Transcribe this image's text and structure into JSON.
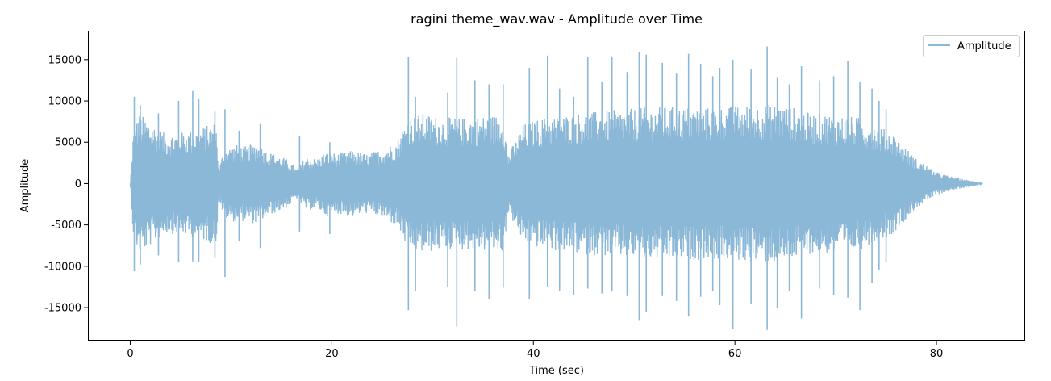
{
  "chart_data": {
    "type": "line",
    "title": "ragini theme_wav.wav - Amplitude over Time",
    "xlabel": "Time (sec)",
    "ylabel": "Amplitude",
    "xlim": [
      -4.2,
      88.8
    ],
    "ylim": [
      -19000,
      18500
    ],
    "xticks": [
      0,
      20,
      40,
      60,
      80
    ],
    "yticks": [
      -15000,
      -10000,
      -5000,
      0,
      5000,
      10000,
      15000
    ],
    "grid": false,
    "legend": {
      "position": "top-right",
      "entries": [
        "Amplitude"
      ]
    },
    "series": [
      {
        "name": "Amplitude",
        "color": "#8cb8d8",
        "duration": 84.6,
        "envelope": [
          [
            0.0,
            0
          ],
          [
            0.3,
            6200
          ],
          [
            0.8,
            8500
          ],
          [
            1.5,
            8000
          ],
          [
            2.5,
            7000
          ],
          [
            3.5,
            6000
          ],
          [
            5.0,
            6200
          ],
          [
            6.5,
            6500
          ],
          [
            7.5,
            7000
          ],
          [
            8.5,
            7500
          ],
          [
            8.8,
            1800
          ],
          [
            9.3,
            4200
          ],
          [
            10.5,
            4700
          ],
          [
            11.5,
            4500
          ],
          [
            12.5,
            5000
          ],
          [
            13.5,
            4000
          ],
          [
            14.5,
            3500
          ],
          [
            15.5,
            3000
          ],
          [
            16.5,
            1800
          ],
          [
            17.5,
            3300
          ],
          [
            18.5,
            3000
          ],
          [
            19.5,
            4000
          ],
          [
            20.5,
            3600
          ],
          [
            22.0,
            4000
          ],
          [
            23.5,
            3600
          ],
          [
            25.0,
            4200
          ],
          [
            26.5,
            5200
          ],
          [
            27.5,
            8000
          ],
          [
            29.0,
            8500
          ],
          [
            31.0,
            8000
          ],
          [
            33.0,
            8000
          ],
          [
            35.0,
            8200
          ],
          [
            37.0,
            8400
          ],
          [
            37.5,
            3500
          ],
          [
            39.0,
            7200
          ],
          [
            41.0,
            8000
          ],
          [
            43.0,
            8300
          ],
          [
            45.0,
            8600
          ],
          [
            47.0,
            8800
          ],
          [
            49.0,
            9000
          ],
          [
            51.0,
            9200
          ],
          [
            53.0,
            9300
          ],
          [
            55.0,
            9300
          ],
          [
            57.0,
            9200
          ],
          [
            59.0,
            9300
          ],
          [
            61.0,
            9500
          ],
          [
            63.0,
            9600
          ],
          [
            64.5,
            9600
          ],
          [
            66.0,
            9200
          ],
          [
            67.5,
            8500
          ],
          [
            69.0,
            8500
          ],
          [
            71.0,
            8200
          ],
          [
            72.5,
            8000
          ],
          [
            74.0,
            7000
          ],
          [
            75.5,
            6300
          ],
          [
            77.0,
            4300
          ],
          [
            78.0,
            3000
          ],
          [
            79.0,
            2200
          ],
          [
            80.0,
            1400
          ],
          [
            81.0,
            1000
          ],
          [
            82.0,
            700
          ],
          [
            83.0,
            450
          ],
          [
            84.0,
            200
          ],
          [
            84.6,
            0
          ]
        ],
        "peaks": [
          [
            0.4,
            10500,
            -10600
          ],
          [
            1.0,
            9500,
            -9800
          ],
          [
            2.8,
            8500,
            -8700
          ],
          [
            4.8,
            10000,
            -9500
          ],
          [
            6.2,
            11200,
            -9400
          ],
          [
            6.8,
            10200,
            -9500
          ],
          [
            8.4,
            8700,
            -9000
          ],
          [
            9.4,
            9000,
            -11300
          ],
          [
            10.8,
            6400,
            -7000
          ],
          [
            12.9,
            7300,
            -7800
          ],
          [
            16.8,
            5800,
            -5800
          ],
          [
            19.8,
            5000,
            -6100
          ],
          [
            27.6,
            15300,
            -15300
          ],
          [
            28.3,
            10500,
            -13000
          ],
          [
            31.5,
            11000,
            -12500
          ],
          [
            32.4,
            15200,
            -17300
          ],
          [
            34.2,
            12500,
            -13000
          ],
          [
            35.6,
            12000,
            -14000
          ],
          [
            37.0,
            12000,
            -12600
          ],
          [
            39.6,
            14000,
            -14000
          ],
          [
            41.4,
            15500,
            -12500
          ],
          [
            42.6,
            11500,
            -13000
          ],
          [
            44.0,
            10500,
            -13500
          ],
          [
            45.4,
            15300,
            -12700
          ],
          [
            46.8,
            12300,
            -13300
          ],
          [
            47.8,
            15400,
            -13000
          ],
          [
            49.3,
            13500,
            -13600
          ],
          [
            50.5,
            15900,
            -16600
          ],
          [
            51.2,
            15600,
            -15500
          ],
          [
            52.8,
            14600,
            -13600
          ],
          [
            54.2,
            13300,
            -14200
          ],
          [
            55.4,
            15700,
            -16100
          ],
          [
            56.6,
            14500,
            -13700
          ],
          [
            57.8,
            13000,
            -13000
          ],
          [
            58.5,
            14000,
            -14700
          ],
          [
            59.8,
            15000,
            -17600
          ],
          [
            61.6,
            13800,
            -14500
          ],
          [
            63.2,
            16600,
            -17700
          ],
          [
            64.2,
            12800,
            -15000
          ],
          [
            65.4,
            12000,
            -13000
          ],
          [
            66.6,
            14200,
            -16300
          ],
          [
            68.4,
            12500,
            -12700
          ],
          [
            69.8,
            13000,
            -13500
          ],
          [
            71.2,
            14800,
            -13800
          ],
          [
            72.4,
            12300,
            -15300
          ],
          [
            73.6,
            11500,
            -12000
          ],
          [
            74.3,
            10000,
            -10500
          ],
          [
            75.0,
            9000,
            -9500
          ]
        ]
      }
    ]
  }
}
